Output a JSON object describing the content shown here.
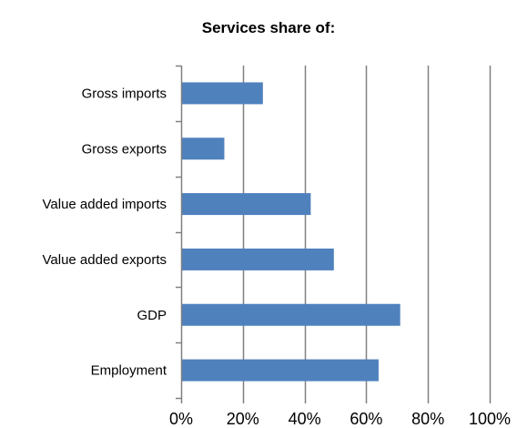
{
  "chart_data": {
    "type": "bar",
    "orientation": "horizontal",
    "title": "Services share of:",
    "categories": [
      "Gross imports",
      "Gross exports",
      "Value added imports",
      "Value added exports",
      "GDP",
      "Employment"
    ],
    "values": [
      0.265,
      0.14,
      0.42,
      0.495,
      0.71,
      0.64
    ],
    "xlim": [
      0,
      1
    ],
    "x_ticks": [
      0,
      0.2,
      0.4,
      0.6,
      0.8,
      1.0
    ],
    "x_tick_labels": [
      "0%",
      "20%",
      "40%",
      "60%",
      "80%",
      "100%"
    ],
    "grid": "vertical",
    "legend": "none",
    "xlabel": "",
    "ylabel": "",
    "colors": {
      "bar": "#4f81bd",
      "grid": "#808080",
      "axis": "#808080"
    }
  }
}
